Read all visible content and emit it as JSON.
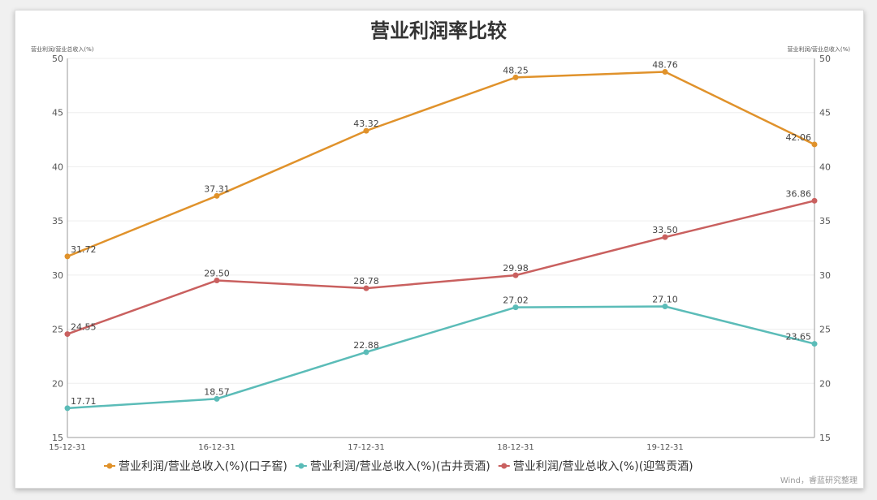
{
  "chart_data": {
    "type": "line",
    "title": "营业利润率比较",
    "ylabel_left": "营业利润/营业总收入(%)",
    "ylabel_right": "营业利润/营业总收入(%)",
    "x": [
      "15-12-31",
      "16-12-31",
      "17-12-31",
      "18-12-31",
      "19-12-31",
      ""
    ],
    "ylim": [
      15,
      50
    ],
    "yticks": [
      15,
      20,
      25,
      30,
      35,
      40,
      45,
      50
    ],
    "grid": true,
    "legend": "bottom",
    "series": [
      {
        "name": "营业利润/营业总收入(%)(口子窖)",
        "color": "#e0922b",
        "values": [
          31.72,
          37.31,
          43.32,
          48.25,
          48.76,
          42.06
        ]
      },
      {
        "name": "营业利润/营业总收入(%)(古井贡酒)",
        "color": "#5bbcb8",
        "values": [
          17.71,
          18.57,
          22.88,
          27.02,
          27.1,
          23.65
        ]
      },
      {
        "name": "营业利润/营业总收入(%)(迎驾贡酒)",
        "color": "#c9605f",
        "values": [
          24.55,
          29.5,
          28.78,
          29.98,
          33.5,
          36.86
        ]
      }
    ]
  },
  "source": "Wind，睿蓝研究整理"
}
